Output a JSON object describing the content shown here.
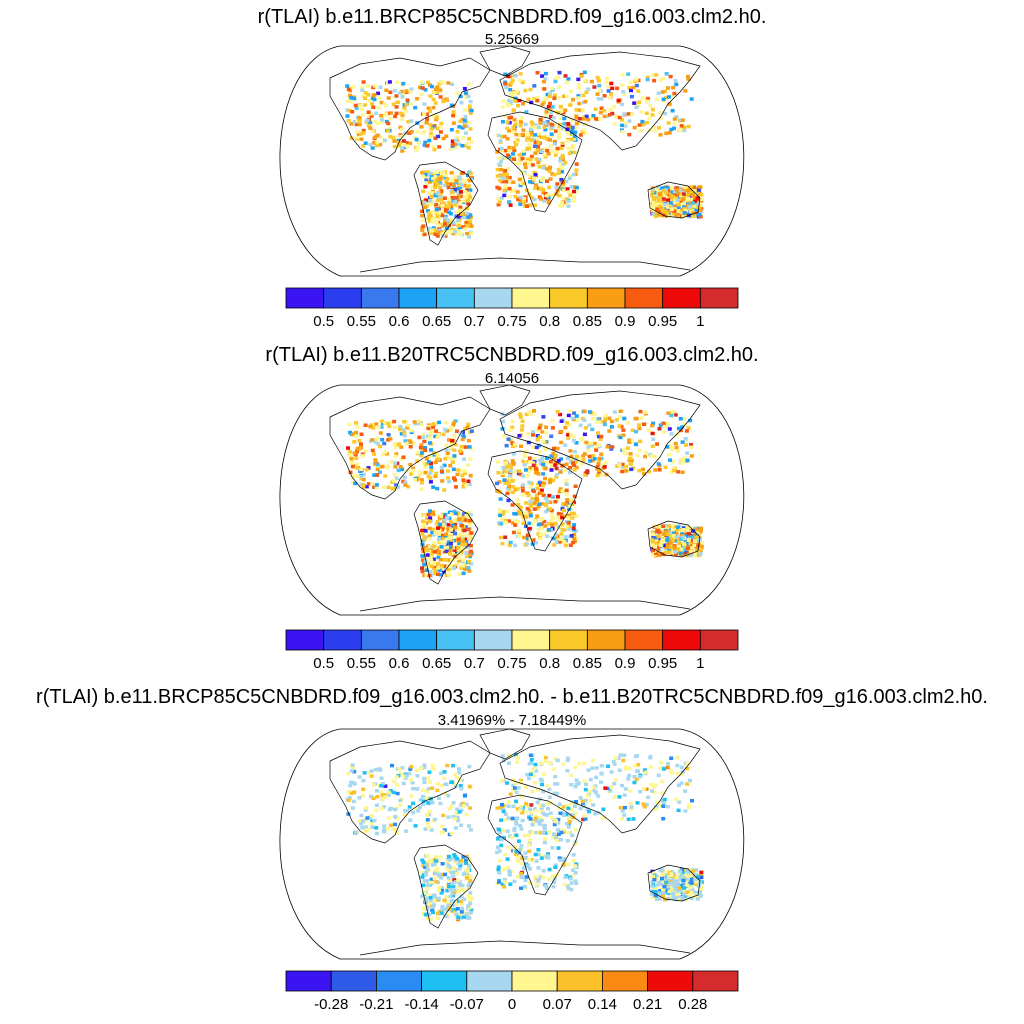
{
  "panels": [
    {
      "title": "r(TLAI) b.e11.BRCP85C5CNBDRD.f09_g16.003.clm2.h0.",
      "subtitle": "5.25669",
      "colorbar": {
        "colors": [
          "#3a14f2",
          "#2a3ef0",
          "#3a78ee",
          "#1ea2f5",
          "#48c2f5",
          "#a8d8f0",
          "#fff690",
          "#fbc92a",
          "#f99d14",
          "#f75b0f",
          "#ef0a0a",
          "#d42c2c"
        ],
        "labels": [
          "0.5",
          "0.55",
          "0.6",
          "0.65",
          "0.7",
          "0.75",
          "0.8",
          "0.85",
          "0.9",
          "0.95",
          "1"
        ]
      }
    },
    {
      "title": "r(TLAI) b.e11.B20TRC5CNBDRD.f09_g16.003.clm2.h0.",
      "subtitle": "6.14056",
      "colorbar": {
        "colors": [
          "#3a14f2",
          "#2a3ef0",
          "#3a78ee",
          "#1ea2f5",
          "#48c2f5",
          "#a8d8f0",
          "#fff690",
          "#fbc92a",
          "#f99d14",
          "#f75b0f",
          "#ef0a0a",
          "#d42c2c"
        ],
        "labels": [
          "0.5",
          "0.55",
          "0.6",
          "0.65",
          "0.7",
          "0.75",
          "0.8",
          "0.85",
          "0.9",
          "0.95",
          "1"
        ]
      }
    },
    {
      "title": "r(TLAI) b.e11.BRCP85C5CNBDRD.f09_g16.003.clm2.h0. - b.e11.B20TRC5CNBDRD.f09_g16.003.clm2.h0.",
      "subtitle": "3.41969% - 7.18449%",
      "colorbar": {
        "colors": [
          "#3a14f2",
          "#2f5ae8",
          "#2a8cf2",
          "#1ec0f2",
          "#a8d8f0",
          "#fff690",
          "#fbc02a",
          "#f98a14",
          "#ef0a0a",
          "#d42c2c"
        ],
        "labels": [
          "-0.28",
          "-0.21",
          "-0.14",
          "-0.07",
          "0",
          "0.07",
          "0.14",
          "0.21",
          "0.28"
        ]
      }
    }
  ]
}
